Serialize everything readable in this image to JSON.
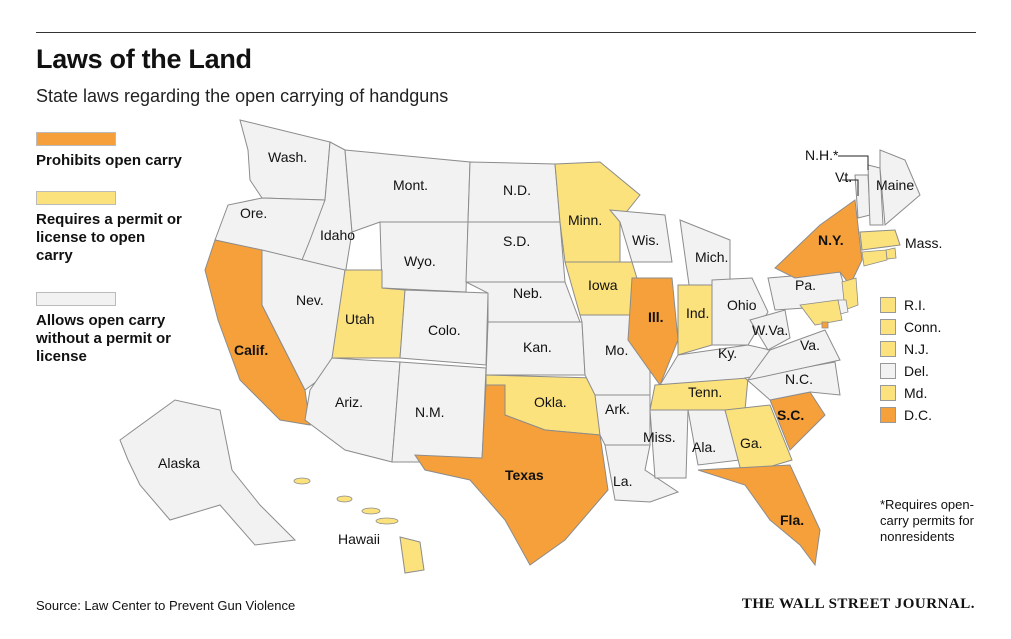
{
  "title": "Laws of the Land",
  "subtitle": "State laws regarding the open carrying of handguns",
  "colors": {
    "prohibits": "#f5a03a",
    "permit": "#fbe27d",
    "allows": "#f2f2f2",
    "border": "#8c8c8c"
  },
  "legend": [
    {
      "category": "prohibits",
      "label": "Prohibits open carry"
    },
    {
      "category": "permit",
      "label": "Requires a permit or license to open carry"
    },
    {
      "category": "allows",
      "label": "Allows open carry without a permit or license"
    }
  ],
  "states": [
    {
      "abbr": "Wash.",
      "category": "allows"
    },
    {
      "abbr": "Ore.",
      "category": "allows"
    },
    {
      "abbr": "Calif.",
      "category": "prohibits"
    },
    {
      "abbr": "Idaho",
      "category": "allows"
    },
    {
      "abbr": "Nev.",
      "category": "allows"
    },
    {
      "abbr": "Mont.",
      "category": "allows"
    },
    {
      "abbr": "Wyo.",
      "category": "allows"
    },
    {
      "abbr": "Utah",
      "category": "permit"
    },
    {
      "abbr": "Colo.",
      "category": "allows"
    },
    {
      "abbr": "Ariz.",
      "category": "allows"
    },
    {
      "abbr": "N.M.",
      "category": "allows"
    },
    {
      "abbr": "N.D.",
      "category": "allows"
    },
    {
      "abbr": "S.D.",
      "category": "allows"
    },
    {
      "abbr": "Neb.",
      "category": "allows"
    },
    {
      "abbr": "Kan.",
      "category": "allows"
    },
    {
      "abbr": "Okla.",
      "category": "permit"
    },
    {
      "abbr": "Texas",
      "category": "prohibits"
    },
    {
      "abbr": "Minn.",
      "category": "permit"
    },
    {
      "abbr": "Iowa",
      "category": "permit"
    },
    {
      "abbr": "Mo.",
      "category": "allows"
    },
    {
      "abbr": "Ark.",
      "category": "allows"
    },
    {
      "abbr": "La.",
      "category": "allows"
    },
    {
      "abbr": "Wis.",
      "category": "allows"
    },
    {
      "abbr": "Ill.",
      "category": "prohibits"
    },
    {
      "abbr": "Mich.",
      "category": "allows"
    },
    {
      "abbr": "Ind.",
      "category": "permit"
    },
    {
      "abbr": "Ohio",
      "category": "allows"
    },
    {
      "abbr": "Ky.",
      "category": "allows"
    },
    {
      "abbr": "Tenn.",
      "category": "permit"
    },
    {
      "abbr": "Miss.",
      "category": "allows"
    },
    {
      "abbr": "Ala.",
      "category": "allows"
    },
    {
      "abbr": "Ga.",
      "category": "permit"
    },
    {
      "abbr": "Fla.",
      "category": "prohibits"
    },
    {
      "abbr": "S.C.",
      "category": "prohibits"
    },
    {
      "abbr": "N.C.",
      "category": "allows"
    },
    {
      "abbr": "Va.",
      "category": "allows"
    },
    {
      "abbr": "W.Va.",
      "category": "allows"
    },
    {
      "abbr": "Pa.",
      "category": "allows"
    },
    {
      "abbr": "N.Y.",
      "category": "prohibits"
    },
    {
      "abbr": "Vt.",
      "category": "allows"
    },
    {
      "abbr": "N.H.*",
      "category": "allows"
    },
    {
      "abbr": "Maine",
      "category": "allows"
    },
    {
      "abbr": "Mass.",
      "category": "permit"
    },
    {
      "abbr": "Alaska",
      "category": "allows"
    },
    {
      "abbr": "Hawaii",
      "category": "permit"
    }
  ],
  "northeast_key": [
    {
      "abbr": "R.I.",
      "category": "permit"
    },
    {
      "abbr": "Conn.",
      "category": "permit"
    },
    {
      "abbr": "N.J.",
      "category": "permit"
    },
    {
      "abbr": "Del.",
      "category": "allows"
    },
    {
      "abbr": "Md.",
      "category": "permit"
    },
    {
      "abbr": "D.C.",
      "category": "prohibits"
    }
  ],
  "footnote": "*Requires open-carry permits for nonresidents",
  "source": "Source: Law Center to Prevent Gun Violence",
  "publisher": "THE WALL STREET JOURNAL."
}
